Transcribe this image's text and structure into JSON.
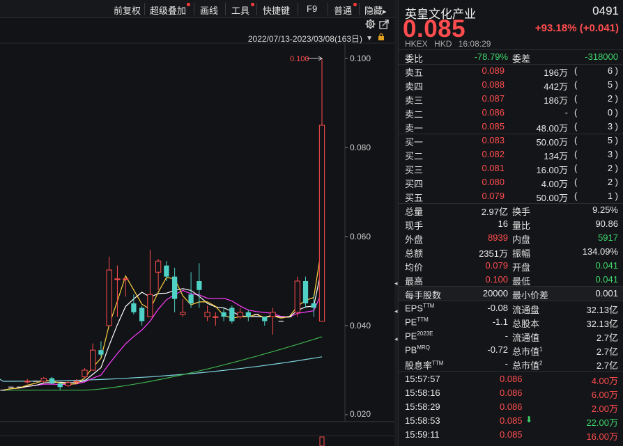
{
  "toolbar": {
    "items": [
      "前复权",
      "超级叠加",
      "画线",
      "工具",
      "快捷键",
      "F9",
      "普通",
      "隐藏"
    ],
    "hide_arrow": "▸"
  },
  "chart": {
    "range_label": "2022/07/13-2023/03/08(163日)",
    "range_arrow": "▼",
    "max_marker": "0.100",
    "y_ticks": [
      "0.100",
      "0.080",
      "0.060",
      "0.040",
      "0.020"
    ]
  },
  "chart_data": {
    "type": "candlestick",
    "y_ticks": [
      0.1,
      0.08,
      0.06,
      0.04,
      0.02
    ],
    "ylim": [
      0.0165,
      0.1035
    ],
    "max_label": "0.100",
    "candles": [
      {
        "o": 0.0255,
        "c": 0.0255,
        "h": 0.0255,
        "l": 0.0255
      },
      {
        "o": 0.0262,
        "c": 0.0262,
        "h": 0.0262,
        "l": 0.0262
      },
      {
        "o": 0.0262,
        "c": 0.0262,
        "h": 0.0262,
        "l": 0.0262
      },
      {
        "o": 0.0275,
        "c": 0.0275,
        "h": 0.028,
        "l": 0.027
      },
      {
        "o": 0.0275,
        "c": 0.0275,
        "h": 0.0275,
        "l": 0.0275
      },
      {
        "o": 0.0275,
        "c": 0.0282,
        "h": 0.0285,
        "l": 0.0272
      },
      {
        "o": 0.0282,
        "c": 0.027,
        "h": 0.0285,
        "l": 0.0268
      },
      {
        "o": 0.027,
        "c": 0.0262,
        "h": 0.0272,
        "l": 0.0255
      },
      {
        "o": 0.0265,
        "c": 0.0272,
        "h": 0.0275,
        "l": 0.0262
      },
      {
        "o": 0.0275,
        "c": 0.0275,
        "h": 0.028,
        "l": 0.027
      },
      {
        "o": 0.0285,
        "c": 0.03,
        "h": 0.0305,
        "l": 0.0282
      },
      {
        "o": 0.03,
        "c": 0.0345,
        "h": 0.036,
        "l": 0.03
      },
      {
        "o": 0.0345,
        "c": 0.0335,
        "h": 0.0365,
        "l": 0.033
      },
      {
        "o": 0.04,
        "c": 0.0525,
        "h": 0.0555,
        "l": 0.04
      },
      {
        "o": 0.0505,
        "c": 0.0505,
        "h": 0.0535,
        "l": 0.042
      },
      {
        "o": 0.0505,
        "c": 0.0505,
        "h": 0.0505,
        "l": 0.0465
      },
      {
        "o": 0.045,
        "c": 0.043,
        "h": 0.047,
        "l": 0.0425
      },
      {
        "o": 0.044,
        "c": 0.041,
        "h": 0.0445,
        "l": 0.04
      },
      {
        "o": 0.042,
        "c": 0.047,
        "h": 0.057,
        "l": 0.042
      },
      {
        "o": 0.052,
        "c": 0.0545,
        "h": 0.055,
        "l": 0.048
      },
      {
        "o": 0.0535,
        "c": 0.051,
        "h": 0.0545,
        "l": 0.05
      },
      {
        "o": 0.051,
        "c": 0.046,
        "h": 0.053,
        "l": 0.043
      },
      {
        "o": 0.0425,
        "c": 0.043,
        "h": 0.046,
        "l": 0.042
      },
      {
        "o": 0.047,
        "c": 0.045,
        "h": 0.052,
        "l": 0.044
      },
      {
        "o": 0.05,
        "c": 0.048,
        "h": 0.054,
        "l": 0.044
      },
      {
        "o": 0.042,
        "c": 0.043,
        "h": 0.0445,
        "l": 0.041
      },
      {
        "o": 0.042,
        "c": 0.042,
        "h": 0.043,
        "l": 0.04
      },
      {
        "o": 0.043,
        "c": 0.042,
        "h": 0.044,
        "l": 0.041
      },
      {
        "o": 0.044,
        "c": 0.041,
        "h": 0.0445,
        "l": 0.0405
      },
      {
        "o": 0.042,
        "c": 0.043,
        "h": 0.044,
        "l": 0.0415
      },
      {
        "o": 0.043,
        "c": 0.042,
        "h": 0.0435,
        "l": 0.041
      },
      {
        "o": 0.0425,
        "c": 0.0425,
        "h": 0.0425,
        "l": 0.0425
      },
      {
        "o": 0.042,
        "c": 0.041,
        "h": 0.042,
        "l": 0.04
      },
      {
        "o": 0.042,
        "c": 0.043,
        "h": 0.044,
        "l": 0.038
      },
      {
        "o": 0.041,
        "c": 0.041,
        "h": 0.041,
        "l": 0.041
      },
      {
        "o": 0.042,
        "c": 0.042,
        "h": 0.042,
        "l": 0.042
      },
      {
        "o": 0.043,
        "c": 0.05,
        "h": 0.051,
        "l": 0.042
      },
      {
        "o": 0.05,
        "c": 0.045,
        "h": 0.051,
        "l": 0.044
      },
      {
        "o": 0.045,
        "c": 0.044,
        "h": 0.047,
        "l": 0.042
      },
      {
        "o": 0.041,
        "c": 0.085,
        "h": 0.1,
        "l": 0.041
      }
    ]
  },
  "panel": {
    "name": "英皇文化产业",
    "code": "0491",
    "price": "0.085",
    "change": "+93.18% (+0.041)",
    "exchange": "HKEX",
    "currency": "HKD",
    "time": "16:08:29",
    "weibi_label": "委比",
    "weibi_value": "-78.79%",
    "weicha_label": "委差",
    "weicha_value": "-318000",
    "asks": [
      {
        "label": "卖五",
        "price": "0.089",
        "vol": "196万",
        "count": "6"
      },
      {
        "label": "卖四",
        "price": "0.088",
        "vol": "442万",
        "count": "5"
      },
      {
        "label": "卖三",
        "price": "0.087",
        "vol": "186万",
        "count": "2"
      },
      {
        "label": "卖二",
        "price": "0.086",
        "vol": "-",
        "count": "0"
      },
      {
        "label": "卖一",
        "price": "0.085",
        "vol": "48.00万",
        "count": "3"
      }
    ],
    "bids": [
      {
        "label": "买一",
        "price": "0.083",
        "vol": "50.00万",
        "count": "5"
      },
      {
        "label": "买二",
        "price": "0.082",
        "vol": "134万",
        "count": "3"
      },
      {
        "label": "买三",
        "price": "0.081",
        "vol": "16.00万",
        "count": "2"
      },
      {
        "label": "买四",
        "price": "0.080",
        "vol": "4.00万",
        "count": "2"
      },
      {
        "label": "买五",
        "price": "0.079",
        "vol": "50.00万",
        "count": "1"
      }
    ],
    "stats": [
      {
        "k1": "总量",
        "v1": "2.97亿",
        "k2": "换手",
        "v2": "9.25%"
      },
      {
        "k1": "现手",
        "v1": "16",
        "k2": "量比",
        "v2": "90.86"
      },
      {
        "k1": "外盘",
        "v1": "8939",
        "k2": "内盘",
        "v2": "5917"
      },
      {
        "k1": "总额",
        "v1": "2351万",
        "k2": "振幅",
        "v2": "134.09%"
      },
      {
        "k1": "均价",
        "v1": "0.079",
        "k2": "开盘",
        "v2": "0.041"
      },
      {
        "k1": "最高",
        "v1": "0.100",
        "k2": "最低",
        "v2": "0.041"
      }
    ],
    "lot": {
      "k1": "每手股数",
      "v1": "20000",
      "k2": "最小价差",
      "v2": "0.001"
    },
    "fund": [
      {
        "k1": "EPS",
        "s1": "TTM",
        "v1": "-0.08",
        "k2": "流通盘",
        "s2": "",
        "v2": "32.13亿"
      },
      {
        "k1": "PE",
        "s1": "TTM",
        "v1": "-1.1",
        "k2": "总股本",
        "s2": "",
        "v2": "32.13亿"
      },
      {
        "k1": "PE",
        "s1": "2023E",
        "v1": "-",
        "k2": "流通值",
        "s2": "",
        "v2": "2.7亿"
      },
      {
        "k1": "PB",
        "s1": "MRQ",
        "v1": "-0.72",
        "k2": "总市值",
        "s2": "1",
        "v2": "2.7亿"
      },
      {
        "k1": "股息率",
        "s1": "TTM",
        "v1": "-",
        "k2": "总市值",
        "s2": "2",
        "v2": "2.7亿"
      }
    ],
    "ticks": [
      {
        "time": "15:57:57",
        "price": "0.086",
        "arrow": "",
        "vol": "4.00万"
      },
      {
        "time": "15:58:16",
        "price": "0.086",
        "arrow": "",
        "vol": "6.00万"
      },
      {
        "time": "15:58:29",
        "price": "0.086",
        "arrow": "",
        "vol": "2.00万"
      },
      {
        "time": "15:58:53",
        "price": "0.085",
        "arrow": "⬇",
        "vol": "22.00万"
      },
      {
        "time": "15:59:11",
        "price": "0.085",
        "arrow": "",
        "vol": "16.00万"
      }
    ]
  },
  "colors": {
    "up": "#ff4d4f",
    "down": "#4fd1c5",
    "ma_yellow": "#ffd23f",
    "ma_white": "#ffffff",
    "ma_magenta": "#ff3cff",
    "ma_green": "#3fb14f",
    "ma_cyan": "#7fd6e0"
  }
}
